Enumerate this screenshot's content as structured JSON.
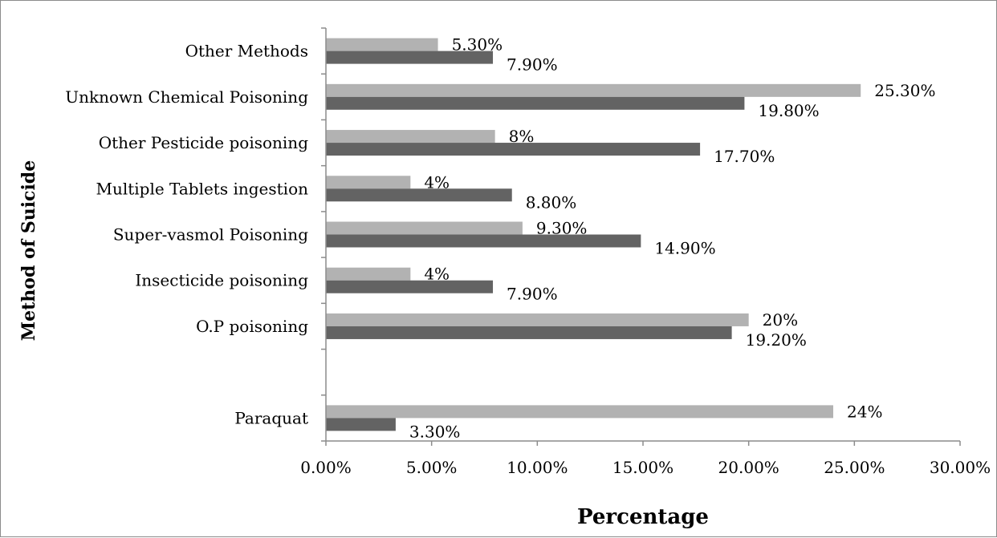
{
  "chart_data": {
    "type": "bar",
    "orientation": "horizontal",
    "xlabel": "Percentage",
    "ylabel": "Method of Suicide",
    "xlim": [
      0,
      30
    ],
    "x_ticks": [
      "0.00%",
      "5.00%",
      "10.00%",
      "15.00%",
      "20.00%",
      "25.00%",
      "30.00%"
    ],
    "grid": false,
    "legend": "none",
    "categories": [
      "Paraquat",
      "",
      "O.P poisoning",
      "Insecticide poisoning",
      "Super-vasmol Poisoning",
      "Multiple Tablets ingestion",
      "Other Pesticide poisoning",
      "Unknown Chemical Poisoning",
      "Other Methods"
    ],
    "series": [
      {
        "color": "#b2b2b2",
        "values": [
          24,
          null,
          20,
          4,
          9.3,
          4,
          8,
          25.3,
          5.3
        ],
        "labels": [
          "24%",
          "",
          "20%",
          "4%",
          "9.30%",
          "4%",
          "8%",
          "25.30%",
          "5.30%"
        ]
      },
      {
        "color": "#636363",
        "values": [
          3.3,
          null,
          19.2,
          7.9,
          14.9,
          8.8,
          17.7,
          19.8,
          7.9
        ],
        "labels": [
          "3.30%",
          "",
          "19.20%",
          "7.90%",
          "14.90%",
          "8.80%",
          "17.70%",
          "19.80%",
          "7.90%"
        ]
      }
    ]
  }
}
